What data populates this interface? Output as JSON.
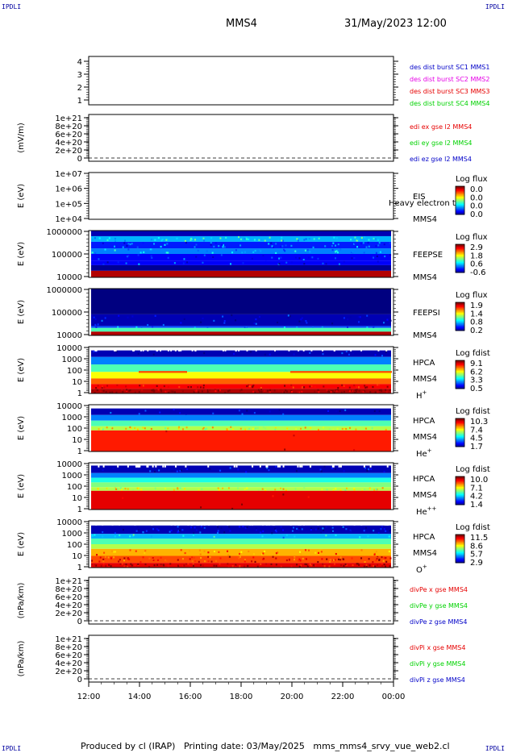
{
  "header": {
    "corner_label": "IPDLI",
    "spacecraft": "MMS4",
    "datetime": "31/May/2023 12:00"
  },
  "footer": {
    "text": "Produced by cl (IRAP)   Printing date: 03/May/2025   mms_mms4_srvy_vue_web2.cl"
  },
  "time_axis": {
    "ticks": [
      "12:00",
      "14:00",
      "16:00",
      "18:00",
      "20:00",
      "22:00",
      "00:00"
    ]
  },
  "colors": {
    "blue": "#0000c8",
    "magenta": "#e600e6",
    "red": "#e60000",
    "green": "#00d200"
  },
  "chart_data": [
    {
      "id": "p1",
      "type": "line",
      "yticks": [
        "1",
        "2",
        "3",
        "4"
      ],
      "legend": [
        {
          "text": "des dist burst SC1 MMS1",
          "color": "#0000c8"
        },
        {
          "text": "des dist burst SC2 MMS2",
          "color": "#e600e6"
        },
        {
          "text": "des dist burst SC3 MMS3",
          "color": "#e60000"
        },
        {
          "text": "des dist burst SC4 MMS4",
          "color": "#00d200"
        }
      ],
      "series": []
    },
    {
      "id": "p2",
      "type": "line",
      "ylabel": "(mV/m)",
      "yticks": [
        "0",
        "2e+20",
        "4e+20",
        "6e+20",
        "8e+20",
        "1e+21"
      ],
      "legend": [
        {
          "text": "edi ex gse l2 MMS4",
          "color": "#e60000"
        },
        {
          "text": "edi ey gse l2 MMS4",
          "color": "#00d200"
        },
        {
          "text": "edi ez gse l2 MMS4",
          "color": "#0000c8"
        }
      ],
      "series": [
        {
          "name": "",
          "values": [
            0,
            0
          ]
        }
      ]
    },
    {
      "id": "p3",
      "type": "heatmap",
      "ylabel": "E (eV)",
      "yticks": [
        "1e+04",
        "1e+05",
        "1e+06",
        "1e+07"
      ],
      "instrument": [
        "EIS",
        "MMS4"
      ],
      "overlay": "Heavy electron to",
      "colorbar": {
        "title": "Log flux",
        "ticks": [
          "0.0",
          "0.0",
          "0.0",
          "0.0"
        ]
      },
      "bands": []
    },
    {
      "id": "p4",
      "type": "heatmap",
      "ylabel": "E (eV)",
      "yticks": [
        "10000",
        "100000",
        "1000000"
      ],
      "instrument": [
        "FEEPSE",
        "MMS4"
      ],
      "colorbar": {
        "title": "Log flux",
        "ticks": [
          "2.9",
          "1.8",
          "0.6",
          "-0.6"
        ]
      },
      "bands": [
        {
          "from": 0.0,
          "to": 0.12,
          "level": 0.05,
          "speck": 0.0
        },
        {
          "from": 0.12,
          "to": 0.24,
          "level": 0.3,
          "speck": 0.3
        },
        {
          "from": 0.24,
          "to": 0.38,
          "level": 0.15,
          "speck": 0.25
        },
        {
          "from": 0.38,
          "to": 0.5,
          "level": 0.25,
          "speck": 0.2
        },
        {
          "from": 0.5,
          "to": 0.64,
          "level": 0.12,
          "speck": 0.15
        },
        {
          "from": 0.64,
          "to": 0.74,
          "level": 0.12,
          "speck": 0.1
        },
        {
          "from": 0.74,
          "to": 0.86,
          "level": 0.02,
          "speck": 0.0
        },
        {
          "from": 0.86,
          "to": 1.0,
          "level": 0.95,
          "speck": 0.0
        }
      ]
    },
    {
      "id": "p5",
      "type": "heatmap",
      "ylabel": "E (eV)",
      "yticks": [
        "10000",
        "100000",
        "1000000"
      ],
      "instrument": [
        "FEEPSI",
        "MMS4"
      ],
      "colorbar": {
        "title": "Log flux",
        "ticks": [
          "1.9",
          "1.4",
          "0.8",
          "0.2"
        ]
      },
      "bands": [
        {
          "from": 0.0,
          "to": 0.55,
          "level": 0.0,
          "speck": 0.0
        },
        {
          "from": 0.55,
          "to": 0.8,
          "level": 0.05,
          "speck": 0.22
        },
        {
          "from": 0.8,
          "to": 0.84,
          "level": 0.2,
          "speck": 0.08
        },
        {
          "from": 0.84,
          "to": 0.92,
          "level": 0.45,
          "speck": 0.0
        },
        {
          "from": 0.92,
          "to": 1.0,
          "level": 0.95,
          "speck": 0.0
        }
      ]
    },
    {
      "id": "p6",
      "type": "heatmap",
      "ylabel": "E (eV)",
      "yticks": [
        "1",
        "10",
        "100",
        "1000",
        "10000"
      ],
      "instrument": [
        "HPCA",
        "MMS4"
      ],
      "species": "H",
      "charge": "+",
      "colorbar": {
        "title": "Log fdist",
        "ticks": [
          "9.1",
          "6.2",
          "3.3",
          "0.5"
        ]
      },
      "bands": [
        {
          "from": 0.0,
          "to": 0.08,
          "level": -1,
          "speck": 0.0
        },
        {
          "from": 0.08,
          "to": 0.22,
          "level": 0.05,
          "speck": 0.1
        },
        {
          "from": 0.22,
          "to": 0.38,
          "level": 0.25,
          "speck": 0.0
        },
        {
          "from": 0.38,
          "to": 0.54,
          "level": 0.45,
          "speck": 0.0
        },
        {
          "from": 0.54,
          "to": 0.68,
          "level": 0.62,
          "speck": 0.0
        },
        {
          "from": 0.68,
          "to": 0.8,
          "level": 0.78,
          "speck": 0.0
        },
        {
          "from": 0.8,
          "to": 0.9,
          "level": 0.88,
          "speck": 0.25
        },
        {
          "from": 0.9,
          "to": 1.0,
          "level": 0.95,
          "speck": 0.6
        }
      ]
    },
    {
      "id": "p7",
      "type": "heatmap",
      "ylabel": "E (eV)",
      "yticks": [
        "1",
        "10",
        "100",
        "1000",
        "10000"
      ],
      "instrument": [
        "HPCA",
        "MMS4"
      ],
      "species": "He",
      "charge": "+",
      "colorbar": {
        "title": "Log fdist",
        "ticks": [
          "10.3",
          "7.4",
          "4.5",
          "1.7"
        ]
      },
      "bands": [
        {
          "from": 0.0,
          "to": 0.08,
          "level": -1,
          "speck": 0.0
        },
        {
          "from": 0.08,
          "to": 0.22,
          "level": 0.05,
          "speck": 0.1
        },
        {
          "from": 0.22,
          "to": 0.34,
          "level": 0.25,
          "speck": 0.0
        },
        {
          "from": 0.34,
          "to": 0.46,
          "level": 0.45,
          "speck": 0.0
        },
        {
          "from": 0.46,
          "to": 0.55,
          "level": 0.55,
          "speck": 0.3
        },
        {
          "from": 0.55,
          "to": 1.0,
          "level": 0.85,
          "speck": 0.02
        }
      ]
    },
    {
      "id": "p8",
      "type": "heatmap",
      "ylabel": "E (eV)",
      "yticks": [
        "1",
        "10",
        "100",
        "1000",
        "10000"
      ],
      "instrument": [
        "HPCA",
        "MMS4"
      ],
      "species": "He",
      "charge": "++",
      "colorbar": {
        "title": "Log fdist",
        "ticks": [
          "10.0",
          "7.1",
          "4.2",
          "1.4"
        ]
      },
      "bands": [
        {
          "from": 0.0,
          "to": 0.06,
          "level": -1,
          "speck": 0.0
        },
        {
          "from": 0.06,
          "to": 0.22,
          "level": 0.05,
          "speck": 0.15
        },
        {
          "from": 0.22,
          "to": 0.32,
          "level": 0.25,
          "speck": 0.0
        },
        {
          "from": 0.32,
          "to": 0.42,
          "level": 0.4,
          "speck": 0.0
        },
        {
          "from": 0.42,
          "to": 0.52,
          "level": 0.5,
          "speck": 0.0
        },
        {
          "from": 0.52,
          "to": 0.6,
          "level": 0.55,
          "speck": 0.3
        },
        {
          "from": 0.6,
          "to": 1.0,
          "level": 0.9,
          "speck": 0.03
        }
      ]
    },
    {
      "id": "p9",
      "type": "heatmap",
      "ylabel": "E (eV)",
      "yticks": [
        "1",
        "10",
        "100",
        "1000",
        "10000"
      ],
      "instrument": [
        "HPCA",
        "MMS4"
      ],
      "species": "O",
      "charge": "+",
      "colorbar": {
        "title": "Log fdist",
        "ticks": [
          "11.5",
          "8.6",
          "5.7",
          "2.9"
        ]
      },
      "bands": [
        {
          "from": 0.0,
          "to": 0.1,
          "level": -1,
          "speck": 0.0
        },
        {
          "from": 0.1,
          "to": 0.28,
          "level": 0.05,
          "speck": 0.4
        },
        {
          "from": 0.28,
          "to": 0.38,
          "level": 0.3,
          "speck": 0.1
        },
        {
          "from": 0.38,
          "to": 0.5,
          "level": 0.45,
          "speck": 0.0
        },
        {
          "from": 0.5,
          "to": 0.6,
          "level": 0.55,
          "speck": 0.0
        },
        {
          "from": 0.6,
          "to": 0.75,
          "level": 0.7,
          "speck": 0.2
        },
        {
          "from": 0.75,
          "to": 0.9,
          "level": 0.8,
          "speck": 0.5
        },
        {
          "from": 0.9,
          "to": 1.0,
          "level": 0.9,
          "speck": 0.5
        }
      ]
    },
    {
      "id": "p10",
      "type": "line",
      "ylabel": "(nPa/km)",
      "yticks": [
        "0",
        "2e+20",
        "4e+20",
        "6e+20",
        "8e+20",
        "1e+21"
      ],
      "legend": [
        {
          "text": "divPe x gse MMS4",
          "color": "#e60000"
        },
        {
          "text": "divPe y gse MMS4",
          "color": "#00d200"
        },
        {
          "text": "divPe z gse MMS4",
          "color": "#0000c8"
        }
      ],
      "series": [
        {
          "name": "",
          "values": [
            0,
            0
          ]
        }
      ]
    },
    {
      "id": "p11",
      "type": "line",
      "ylabel": "(nPa/km)",
      "yticks": [
        "0",
        "2e+20",
        "4e+20",
        "6e+20",
        "8e+20",
        "1e+21"
      ],
      "legend": [
        {
          "text": "divPi x gse MMS4",
          "color": "#e60000"
        },
        {
          "text": "divPi y gse MMS4",
          "color": "#00d200"
        },
        {
          "text": "divPi z gse MMS4",
          "color": "#0000c8"
        }
      ],
      "series": [
        {
          "name": "",
          "values": [
            0,
            0
          ]
        }
      ]
    }
  ]
}
